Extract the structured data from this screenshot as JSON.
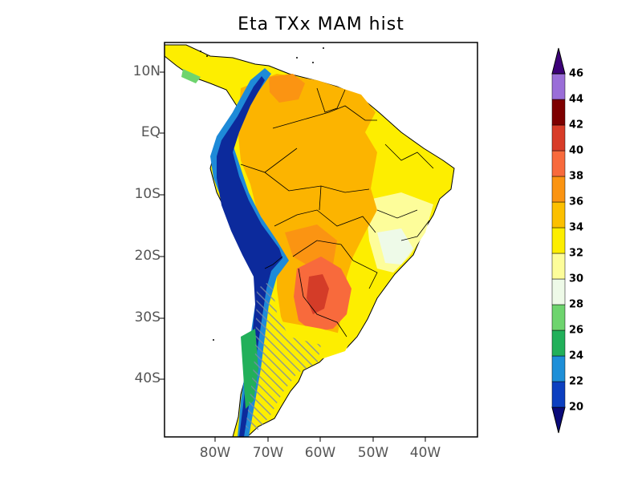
{
  "title": "Eta TXx MAM hist",
  "lat_labels": [
    "10N",
    "EQ",
    "10S",
    "20S",
    "30S",
    "40S"
  ],
  "lon_labels": [
    "80W",
    "70W",
    "60W",
    "50W",
    "40W"
  ],
  "colorbar": {
    "ticks": [
      "20",
      "22",
      "24",
      "26",
      "28",
      "30",
      "32",
      "34",
      "36",
      "38",
      "40",
      "42",
      "44",
      "46"
    ],
    "colors": [
      "#0a2a9a",
      "#0c3fc0",
      "#1e8fd8",
      "#22b05a",
      "#6ed46e",
      "#eefae8",
      "#fdfd9a",
      "#fdee00",
      "#fcc000",
      "#fb9412",
      "#f86a3c",
      "#d83c28",
      "#7e0000",
      "#9a6ed8",
      "#3c0078"
    ]
  },
  "colors": {
    "hot": "#fcb400",
    "veryhot": "#f87a3a",
    "extreme": "#d43c28",
    "andes": "#0c2a9c",
    "highland": "#1e8ad8",
    "green": "#22b05a",
    "warm": "#fdee00"
  }
}
